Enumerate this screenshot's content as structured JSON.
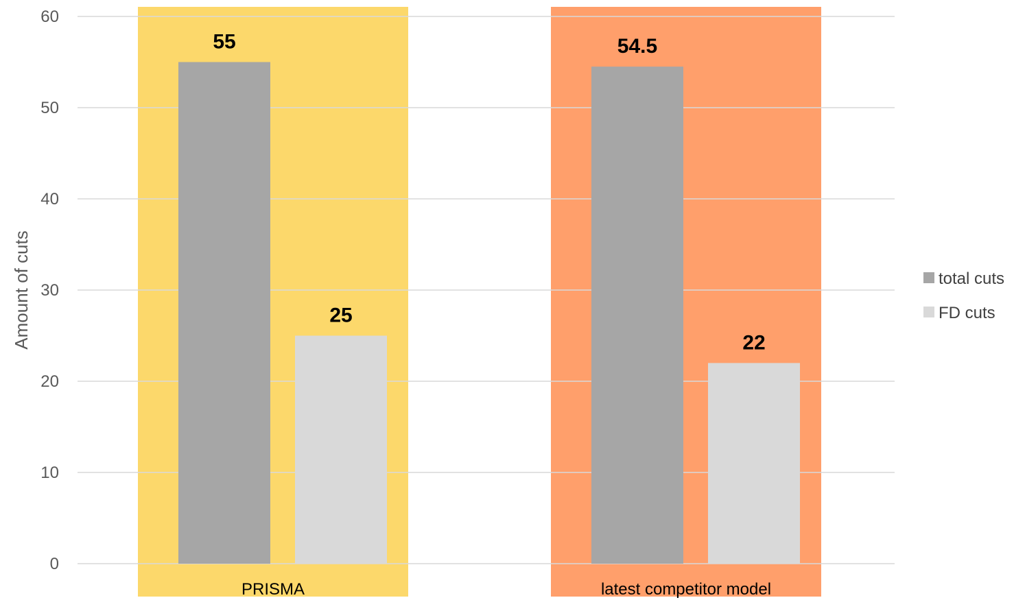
{
  "chart_data": {
    "type": "bar",
    "categories": [
      "PRISMA",
      "latest competitor model"
    ],
    "category_background_colors": [
      "#FCD86B",
      "#FF9F6B"
    ],
    "series": [
      {
        "name": "total cuts",
        "values": [
          55,
          54.5
        ],
        "color": "#A6A6A6"
      },
      {
        "name": "FD cuts",
        "values": [
          25,
          22
        ],
        "color": "#D9D9D9"
      }
    ],
    "title": "",
    "xlabel": "",
    "ylabel": "Amount of cuts",
    "ylim": [
      0,
      60
    ],
    "yticks": [
      0,
      10,
      20,
      30,
      40,
      50,
      60
    ],
    "grid": true,
    "legend_position": "right",
    "data_labels": true,
    "gridline_color": "#D9D9D9"
  }
}
